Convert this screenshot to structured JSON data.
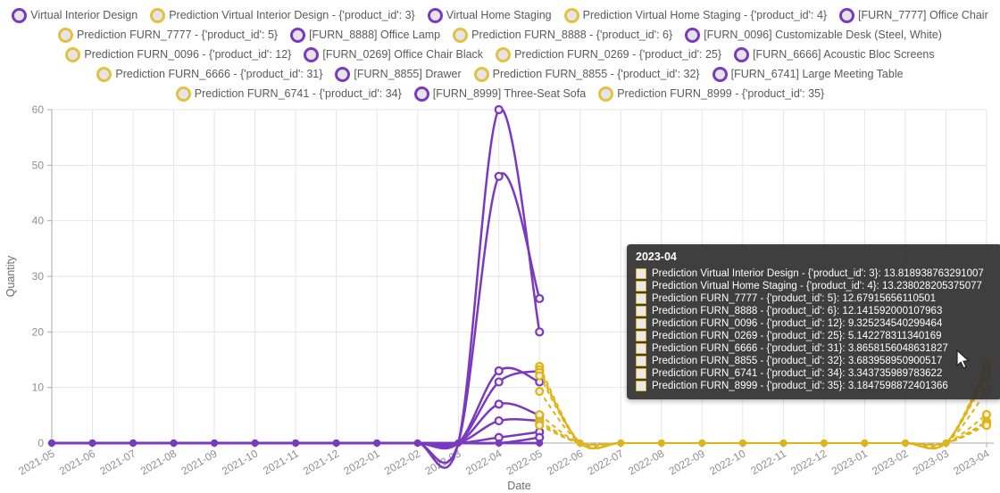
{
  "colors": {
    "actual": "#7a3ac0",
    "prediction": "#ddb51a",
    "legend_fill": "#e7e3e8",
    "grid": "#e6e6e6",
    "axis_line": "#aaaaaa",
    "tick_label": "#8f8f8f",
    "axis_title": "#6e6e6e",
    "tooltip_bg": "#303030"
  },
  "legend": {
    "rows": [
      [
        {
          "label": "Virtual Interior Design",
          "type": "actual"
        },
        {
          "label": "Prediction Virtual Interior Design - {'product_id': 3}",
          "type": "prediction"
        },
        {
          "label": "Virtual Home Staging",
          "type": "actual"
        },
        {
          "label": "Prediction Virtual Home Staging - {'product_id': 4}",
          "type": "prediction"
        },
        {
          "label": "[FURN_7777] Office Chair",
          "type": "actual"
        }
      ],
      [
        {
          "label": "Prediction FURN_7777 - {'product_id': 5}",
          "type": "prediction"
        },
        {
          "label": "[FURN_8888] Office Lamp",
          "type": "actual"
        },
        {
          "label": "Prediction FURN_8888 - {'product_id': 6}",
          "type": "prediction"
        },
        {
          "label": "[FURN_0096] Customizable Desk (Steel, White)",
          "type": "actual"
        }
      ],
      [
        {
          "label": "Prediction FURN_0096 - {'product_id': 12}",
          "type": "prediction"
        },
        {
          "label": "[FURN_0269] Office Chair Black",
          "type": "actual"
        },
        {
          "label": "Prediction FURN_0269 - {'product_id': 25}",
          "type": "prediction"
        },
        {
          "label": "[FURN_6666] Acoustic Bloc Screens",
          "type": "actual"
        }
      ],
      [
        {
          "label": "Prediction FURN_6666 - {'product_id': 31}",
          "type": "prediction"
        },
        {
          "label": "[FURN_8855] Drawer",
          "type": "actual"
        },
        {
          "label": "Prediction FURN_8855 - {'product_id': 32}",
          "type": "prediction"
        },
        {
          "label": "[FURN_6741] Large Meeting Table",
          "type": "actual"
        }
      ],
      [
        {
          "label": "Prediction FURN_6741 - {'product_id': 34}",
          "type": "prediction"
        },
        {
          "label": "[FURN_8999] Three-Seat Sofa",
          "type": "actual"
        },
        {
          "label": "Prediction FURN_8999 - {'product_id': 35}",
          "type": "prediction"
        }
      ]
    ]
  },
  "chart_data": {
    "type": "line",
    "title": "",
    "xlabel": "Date",
    "ylabel": "Quantity",
    "ylim": [
      0,
      60
    ],
    "y_ticks": [
      0,
      10,
      20,
      30,
      40,
      50,
      60
    ],
    "grid": true,
    "legend_position": "top",
    "x": [
      "2021-05",
      "2021-06",
      "2021-07",
      "2021-08",
      "2021-09",
      "2021-10",
      "2021-11",
      "2021-12",
      "2022-01",
      "2022-02",
      "2022-03",
      "2022-04",
      "2022-05",
      "2022-06",
      "2022-07",
      "2022-08",
      "2022-09",
      "2022-10",
      "2022-11",
      "2022-12",
      "2023-01",
      "2023-02",
      "2023-03",
      "2023-04"
    ],
    "series": [
      {
        "name": "Virtual Interior Design",
        "role": "actual",
        "values": [
          0,
          0,
          0,
          0,
          0,
          0,
          0,
          0,
          0,
          0,
          0,
          60,
          20,
          null,
          null,
          null,
          null,
          null,
          null,
          null,
          null,
          null,
          null,
          null
        ]
      },
      {
        "name": "Virtual Home Staging",
        "role": "actual",
        "values": [
          0,
          0,
          0,
          0,
          0,
          0,
          0,
          0,
          0,
          0,
          0,
          48,
          26,
          null,
          null,
          null,
          null,
          null,
          null,
          null,
          null,
          null,
          null,
          null
        ]
      },
      {
        "name": "[FURN_7777] Office Chair",
        "role": "actual",
        "values": [
          0,
          0,
          0,
          0,
          0,
          0,
          0,
          0,
          0,
          0,
          0,
          13,
          11,
          null,
          null,
          null,
          null,
          null,
          null,
          null,
          null,
          null,
          null,
          null
        ]
      },
      {
        "name": "[FURN_8888] Office Lamp",
        "role": "actual",
        "values": [
          0,
          0,
          0,
          0,
          0,
          0,
          0,
          0,
          0,
          0,
          0,
          11,
          13,
          null,
          null,
          null,
          null,
          null,
          null,
          null,
          null,
          null,
          null,
          null
        ]
      },
      {
        "name": "[FURN_0096] Customizable Desk (Steel, White)",
        "role": "actual",
        "values": [
          0,
          0,
          0,
          0,
          0,
          0,
          0,
          0,
          0,
          0,
          0,
          7,
          5,
          null,
          null,
          null,
          null,
          null,
          null,
          null,
          null,
          null,
          null,
          null
        ]
      },
      {
        "name": "[FURN_0269] Office Chair Black",
        "role": "actual",
        "values": [
          0,
          0,
          0,
          0,
          0,
          0,
          0,
          0,
          0,
          0,
          0,
          4,
          4,
          null,
          null,
          null,
          null,
          null,
          null,
          null,
          null,
          null,
          null,
          null
        ]
      },
      {
        "name": "[FURN_6666] Acoustic Bloc Screens",
        "role": "actual",
        "values": [
          0,
          0,
          0,
          0,
          0,
          0,
          0,
          0,
          0,
          0,
          0,
          1,
          2,
          null,
          null,
          null,
          null,
          null,
          null,
          null,
          null,
          null,
          null,
          null
        ]
      },
      {
        "name": "[FURN_8855] Drawer",
        "role": "actual",
        "values": [
          0,
          0,
          0,
          0,
          0,
          0,
          0,
          0,
          0,
          0,
          0,
          0,
          1,
          null,
          null,
          null,
          null,
          null,
          null,
          null,
          null,
          null,
          null,
          null
        ]
      },
      {
        "name": "[FURN_6741] Large Meeting Table",
        "role": "actual",
        "values": [
          0,
          0,
          0,
          0,
          0,
          0,
          0,
          0,
          0,
          0,
          0,
          0,
          0,
          null,
          null,
          null,
          null,
          null,
          null,
          null,
          null,
          null,
          null,
          null
        ]
      },
      {
        "name": "[FURN_8999] Three-Seat Sofa",
        "role": "actual",
        "values": [
          0,
          0,
          0,
          0,
          0,
          0,
          0,
          0,
          0,
          0,
          0,
          0,
          0,
          null,
          null,
          null,
          null,
          null,
          null,
          null,
          null,
          null,
          null,
          null
        ]
      },
      {
        "name": "Prediction Virtual Interior Design - {'product_id': 3}",
        "role": "prediction",
        "values": [
          null,
          null,
          null,
          null,
          null,
          null,
          null,
          null,
          null,
          null,
          null,
          null,
          13.8,
          0,
          0,
          0,
          0,
          0,
          0,
          0,
          0,
          0,
          0,
          13.818938763291007
        ]
      },
      {
        "name": "Prediction Virtual Home Staging - {'product_id': 4}",
        "role": "prediction",
        "values": [
          null,
          null,
          null,
          null,
          null,
          null,
          null,
          null,
          null,
          null,
          null,
          null,
          13.2,
          0,
          0,
          0,
          0,
          0,
          0,
          0,
          0,
          0,
          0,
          13.238028205375077
        ]
      },
      {
        "name": "Prediction FURN_7777 - {'product_id': 5}",
        "role": "prediction",
        "values": [
          null,
          null,
          null,
          null,
          null,
          null,
          null,
          null,
          null,
          null,
          null,
          null,
          12.7,
          0,
          0,
          0,
          0,
          0,
          0,
          0,
          0,
          0,
          0,
          12.67915656110501
        ]
      },
      {
        "name": "Prediction FURN_8888 - {'product_id': 6}",
        "role": "prediction",
        "values": [
          null,
          null,
          null,
          null,
          null,
          null,
          null,
          null,
          null,
          null,
          null,
          null,
          12.1,
          0,
          0,
          0,
          0,
          0,
          0,
          0,
          0,
          0,
          0,
          12.141592000107963
        ]
      },
      {
        "name": "Prediction FURN_0096 - {'product_id': 12}",
        "role": "prediction",
        "values": [
          null,
          null,
          null,
          null,
          null,
          null,
          null,
          null,
          null,
          null,
          null,
          null,
          9.3,
          0,
          0,
          0,
          0,
          0,
          0,
          0,
          0,
          0,
          0,
          9.325234540299464
        ]
      },
      {
        "name": "Prediction FURN_0269 - {'product_id': 25}",
        "role": "prediction",
        "values": [
          null,
          null,
          null,
          null,
          null,
          null,
          null,
          null,
          null,
          null,
          null,
          null,
          5.1,
          0,
          0,
          0,
          0,
          0,
          0,
          0,
          0,
          0,
          0,
          5.142278311340169
        ]
      },
      {
        "name": "Prediction FURN_6666 - {'product_id': 31}",
        "role": "prediction",
        "values": [
          null,
          null,
          null,
          null,
          null,
          null,
          null,
          null,
          null,
          null,
          null,
          null,
          3.9,
          0,
          0,
          0,
          0,
          0,
          0,
          0,
          0,
          0,
          0,
          3.8658156048631827
        ]
      },
      {
        "name": "Prediction FURN_8855 - {'product_id': 32}",
        "role": "prediction",
        "values": [
          null,
          null,
          null,
          null,
          null,
          null,
          null,
          null,
          null,
          null,
          null,
          null,
          3.7,
          0,
          0,
          0,
          0,
          0,
          0,
          0,
          0,
          0,
          0,
          3.683958950900517
        ]
      },
      {
        "name": "Prediction FURN_6741 - {'product_id': 34}",
        "role": "prediction",
        "values": [
          null,
          null,
          null,
          null,
          null,
          null,
          null,
          null,
          null,
          null,
          null,
          null,
          3.3,
          0,
          0,
          0,
          0,
          0,
          0,
          0,
          0,
          0,
          0,
          3.343735989783622
        ]
      },
      {
        "name": "Prediction FURN_8999 - {'product_id': 35}",
        "role": "prediction",
        "values": [
          null,
          null,
          null,
          null,
          null,
          null,
          null,
          null,
          null,
          null,
          null,
          null,
          3.2,
          0,
          0,
          0,
          0,
          0,
          0,
          0,
          0,
          0,
          0,
          3.1847598872401366
        ]
      }
    ]
  },
  "tooltip": {
    "title": "2023-04",
    "rows": [
      {
        "label": "Prediction Virtual Interior Design - {'product_id': 3}",
        "value": "13.818938763291007"
      },
      {
        "label": "Prediction Virtual Home Staging - {'product_id': 4}",
        "value": "13.238028205375077"
      },
      {
        "label": "Prediction FURN_7777 - {'product_id': 5}",
        "value": "12.67915656110501"
      },
      {
        "label": "Prediction FURN_8888 - {'product_id': 6}",
        "value": "12.141592000107963"
      },
      {
        "label": "Prediction FURN_0096 - {'product_id': 12}",
        "value": "9.325234540299464"
      },
      {
        "label": "Prediction FURN_0269 - {'product_id': 25}",
        "value": "5.142278311340169"
      },
      {
        "label": "Prediction FURN_6666 - {'product_id': 31}",
        "value": "3.8658156048631827"
      },
      {
        "label": "Prediction FURN_8855 - {'product_id': 32}",
        "value": "3.683958950900517"
      },
      {
        "label": "Prediction FURN_6741 - {'product_id': 34}",
        "value": "3.343735989783622"
      },
      {
        "label": "Prediction FURN_8999 - {'product_id': 35}",
        "value": "3.1847598872401366"
      }
    ]
  }
}
